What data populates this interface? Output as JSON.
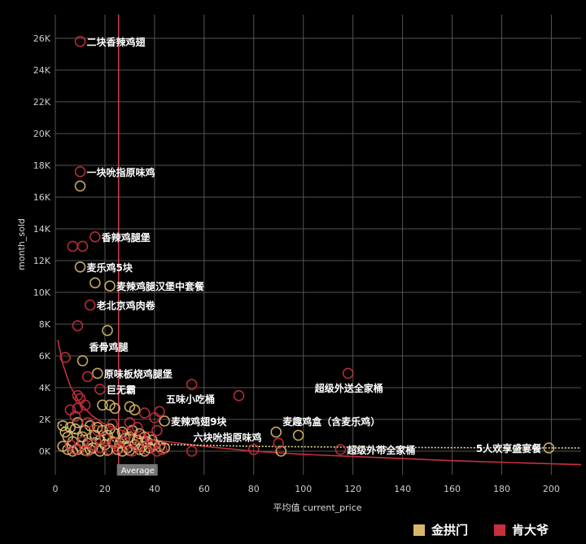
{
  "chart_data": {
    "type": "scatter",
    "xlabel": "平均值 current_price",
    "ylabel": "month_sold",
    "xlim": [
      -10,
      212
    ],
    "ylim": [
      -1200,
      27200
    ],
    "x_ticks": [
      0,
      20,
      40,
      60,
      80,
      100,
      120,
      140,
      160,
      180,
      200
    ],
    "x_tick_labels": [
      "0",
      "20",
      "40",
      "60",
      "80",
      "100",
      "120",
      "140",
      "160",
      "180",
      "200"
    ],
    "y_ticks": [
      0,
      2000,
      4000,
      6000,
      8000,
      10000,
      12000,
      14000,
      16000,
      18000,
      20000,
      22000,
      24000,
      26000
    ],
    "y_tick_labels": [
      "0K",
      "2K",
      "4K",
      "6K",
      "8K",
      "10K",
      "12K",
      "14K",
      "16K",
      "18K",
      "20K",
      "22K",
      "24K",
      "26K"
    ],
    "grid": true,
    "average_line": {
      "x": 25.5,
      "label": "Average"
    },
    "legend_position": "bottom-right",
    "series": [
      {
        "name": "金拱门",
        "color": "#d9b86a",
        "points": [
          [
            10,
            16700
          ],
          [
            10,
            11600
          ],
          [
            16,
            10600
          ],
          [
            21,
            7600
          ],
          [
            11,
            5700
          ],
          [
            17,
            4900
          ],
          [
            22,
            10400
          ],
          [
            19,
            2900
          ],
          [
            22,
            2900
          ],
          [
            24,
            2700
          ],
          [
            30,
            2800
          ],
          [
            32,
            2600
          ],
          [
            44,
            1900
          ],
          [
            89,
            1200
          ],
          [
            98,
            1000
          ],
          [
            91,
            0
          ],
          [
            199,
            200
          ],
          [
            3,
            1600
          ],
          [
            4,
            1200
          ],
          [
            5,
            900
          ],
          [
            6,
            1500
          ],
          [
            7,
            600
          ],
          [
            8,
            1400
          ],
          [
            9,
            1800
          ],
          [
            10,
            300
          ],
          [
            11,
            900
          ],
          [
            12,
            1300
          ],
          [
            13,
            500
          ],
          [
            14,
            1600
          ],
          [
            15,
            200
          ],
          [
            16,
            1000
          ],
          [
            17,
            1500
          ],
          [
            18,
            700
          ],
          [
            19,
            1300
          ],
          [
            20,
            400
          ],
          [
            21,
            1000
          ],
          [
            22,
            1400
          ],
          [
            23,
            600
          ],
          [
            24,
            1100
          ],
          [
            26,
            500
          ],
          [
            27,
            1200
          ],
          [
            28,
            800
          ],
          [
            29,
            200
          ],
          [
            30,
            900
          ],
          [
            31,
            1300
          ],
          [
            32,
            400
          ],
          [
            33,
            700
          ],
          [
            34,
            1100
          ],
          [
            35,
            300
          ],
          [
            36,
            900
          ],
          [
            37,
            600
          ],
          [
            38,
            200
          ],
          [
            39,
            700
          ],
          [
            40,
            400
          ],
          [
            42,
            300
          ],
          [
            44,
            200
          ],
          [
            3,
            300
          ],
          [
            5,
            100
          ],
          [
            7,
            0
          ],
          [
            9,
            100
          ],
          [
            12,
            50
          ],
          [
            14,
            100
          ],
          [
            18,
            0
          ],
          [
            21,
            50
          ],
          [
            25,
            100
          ],
          [
            27,
            0
          ],
          [
            30,
            50
          ],
          [
            34,
            100
          ],
          [
            36,
            0
          ]
        ]
      },
      {
        "name": "肯大爷",
        "color": "#c8303c",
        "points": [
          [
            10,
            25800
          ],
          [
            10,
            17600
          ],
          [
            16,
            13500
          ],
          [
            7,
            12900
          ],
          [
            11,
            12900
          ],
          [
            14,
            9200
          ],
          [
            9,
            7900
          ],
          [
            4,
            5900
          ],
          [
            13,
            4700
          ],
          [
            18,
            3900
          ],
          [
            55,
            4200
          ],
          [
            74,
            3500
          ],
          [
            118,
            4900
          ],
          [
            9,
            3500
          ],
          [
            10,
            3300
          ],
          [
            12,
            2900
          ],
          [
            9,
            2700
          ],
          [
            36,
            2400
          ],
          [
            40,
            2100
          ],
          [
            42,
            2500
          ],
          [
            90,
            500
          ],
          [
            115,
            100
          ],
          [
            80,
            100
          ],
          [
            55,
            0
          ],
          [
            6,
            2600
          ],
          [
            8,
            2200
          ],
          [
            13,
            1800
          ],
          [
            17,
            1300
          ],
          [
            23,
            1700
          ],
          [
            29,
            1100
          ],
          [
            33,
            1500
          ],
          [
            38,
            900
          ],
          [
            41,
            1300
          ],
          [
            6,
            400
          ],
          [
            8,
            100
          ],
          [
            11,
            600
          ],
          [
            13,
            0
          ],
          [
            15,
            400
          ],
          [
            18,
            200
          ],
          [
            20,
            800
          ],
          [
            22,
            100
          ],
          [
            24,
            500
          ],
          [
            26,
            200
          ],
          [
            28,
            600
          ],
          [
            31,
            0
          ],
          [
            33,
            300
          ],
          [
            35,
            800
          ],
          [
            37,
            100
          ],
          [
            39,
            400
          ],
          [
            41,
            0
          ],
          [
            43,
            100
          ],
          [
            30,
            1800
          ]
        ]
      }
    ],
    "annotations": [
      {
        "text": "二块香辣鸡翅",
        "x": 10,
        "y": 25800
      },
      {
        "text": "一块吮指原味鸡",
        "x": 10,
        "y": 17600
      },
      {
        "text": "香辣鸡腿堡",
        "x": 16,
        "y": 13500
      },
      {
        "text": "麦乐鸡5块",
        "x": 10,
        "y": 11600
      },
      {
        "text": "麦辣鸡腿汉堡中套餐",
        "x": 22,
        "y": 10400
      },
      {
        "text": "老北京鸡肉卷",
        "x": 14,
        "y": 9200
      },
      {
        "text": "香骨鸡腿",
        "x": 11,
        "y": 6600
      },
      {
        "text": "原味板烧鸡腿堡",
        "x": 17,
        "y": 4900
      },
      {
        "text": "巨无霸",
        "x": 18,
        "y": 3900
      },
      {
        "text": "五味小吃桶",
        "x": 42,
        "y": 3300
      },
      {
        "text": "超级外送全家桶",
        "x": 102,
        "y": 4000
      },
      {
        "text": "麦辣鸡翅9块",
        "x": 44,
        "y": 1900
      },
      {
        "text": "麦趣鸡盒（含麦乐鸡）",
        "x": 89,
        "y": 1900
      },
      {
        "text": "六块吮指原味鸡",
        "x": 53,
        "y": 900
      },
      {
        "text": "超级外带全家桶",
        "x": 115,
        "y": 100
      },
      {
        "text": "5人欢享盛宴餐",
        "x": 167,
        "y": 200
      }
    ],
    "trend_line": {
      "name": "肯大爷",
      "color": "#c8303c",
      "points": [
        [
          1,
          7000
        ],
        [
          3,
          5500
        ],
        [
          6,
          4100
        ],
        [
          10,
          3000
        ],
        [
          15,
          2200
        ],
        [
          20,
          1700
        ],
        [
          30,
          1100
        ],
        [
          40,
          700
        ],
        [
          60,
          300
        ],
        [
          80,
          0
        ],
        [
          100,
          -200
        ],
        [
          130,
          -400
        ],
        [
          160,
          -600
        ],
        [
          190,
          -750
        ],
        [
          212,
          -850
        ]
      ]
    },
    "trend_line_2": {
      "name": "金拱门",
      "color": "#e8dca0",
      "points": [
        [
          1,
          1800
        ],
        [
          5,
          1300
        ],
        [
          10,
          1000
        ],
        [
          20,
          700
        ],
        [
          30,
          550
        ],
        [
          50,
          400
        ],
        [
          80,
          300
        ],
        [
          120,
          250
        ],
        [
          160,
          220
        ],
        [
          212,
          200
        ]
      ]
    }
  },
  "legend": {
    "items": [
      {
        "label": "金拱门",
        "color": "#d9b86a"
      },
      {
        "label": "肯大爷",
        "color": "#c8303c"
      }
    ]
  }
}
